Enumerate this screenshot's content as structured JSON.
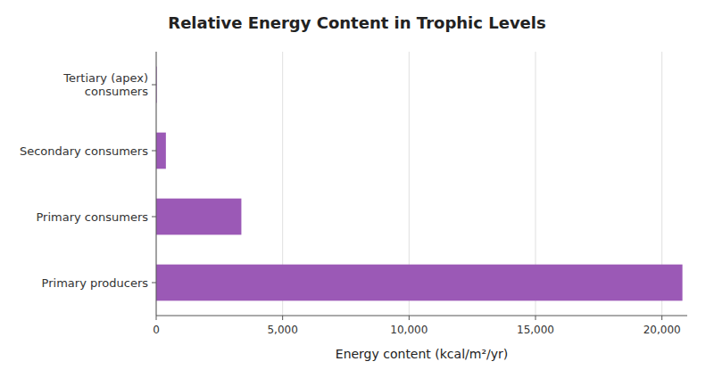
{
  "chart_data": {
    "type": "bar",
    "orientation": "horizontal",
    "title": "Relative Energy Content in Trophic Levels",
    "categories": [
      "Primary producers",
      "Primary consumers",
      "Secondary consumers",
      "Tertiary (apex)\nconsumers"
    ],
    "values": [
      20810,
      3368,
      383,
      21
    ],
    "color": "#9b59b6",
    "xlabel": "Energy content (kcal/m²/yr)",
    "xlim": [
      0,
      21000
    ],
    "xticks": [
      0,
      {
        "value": 5000,
        "label": "5,000"
      },
      {
        "value": 10000,
        "label": "10,000"
      },
      {
        "value": 15000,
        "label": "15,000"
      },
      {
        "value": 20000,
        "label": "20,000"
      }
    ],
    "grid": true
  }
}
